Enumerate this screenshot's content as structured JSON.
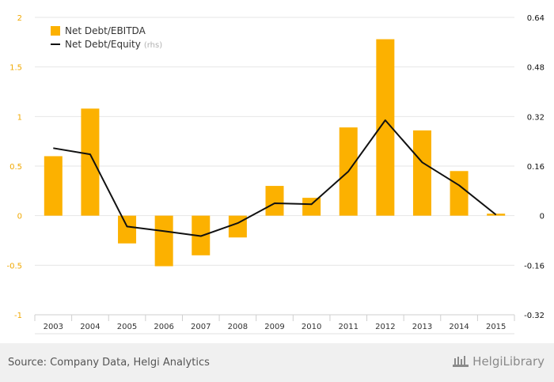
{
  "chart_data": {
    "type": "bar",
    "categories": [
      "2003",
      "2004",
      "2005",
      "2006",
      "2007",
      "2008",
      "2009",
      "2010",
      "2011",
      "2012",
      "2013",
      "2014",
      "2015"
    ],
    "series": [
      {
        "name": "Net Debt/EBITDA",
        "type": "bar",
        "axis": "left",
        "color": "#fcb100",
        "values": [
          0.6,
          1.08,
          -0.28,
          -0.51,
          -0.4,
          -0.22,
          0.3,
          0.18,
          0.89,
          1.78,
          0.86,
          0.45,
          0.02
        ]
      },
      {
        "name": "Net Debt/Equity",
        "legend_suffix": "(rhs)",
        "type": "line",
        "axis": "right",
        "color": "#111111",
        "values": [
          0.218,
          0.198,
          -0.035,
          -0.05,
          -0.066,
          -0.024,
          0.04,
          0.037,
          0.143,
          0.308,
          0.172,
          0.098,
          0.003
        ]
      }
    ],
    "y_left": {
      "min": -1,
      "max": 2,
      "ticks": [
        2,
        1.5,
        1,
        0.5,
        0,
        -0.5,
        -1
      ],
      "tick_labels": [
        "2",
        "1.5",
        "1",
        "0.5",
        "0",
        "-0.5",
        "-1"
      ],
      "tick_color": "#f0a800"
    },
    "y_right": {
      "min": -0.32,
      "max": 0.64,
      "ticks": [
        0.64,
        0.48,
        0.32,
        0.16,
        0,
        -0.16,
        -0.32
      ],
      "tick_labels": [
        "0.64",
        "0.48",
        "0.32",
        "0.16",
        "0",
        "-0.16",
        "-0.32"
      ]
    },
    "grid": true,
    "legend_position": "top-left"
  },
  "footer": {
    "source": "Source: Company Data, Helgi Analytics",
    "logo_text": "HelgiLibrary"
  }
}
